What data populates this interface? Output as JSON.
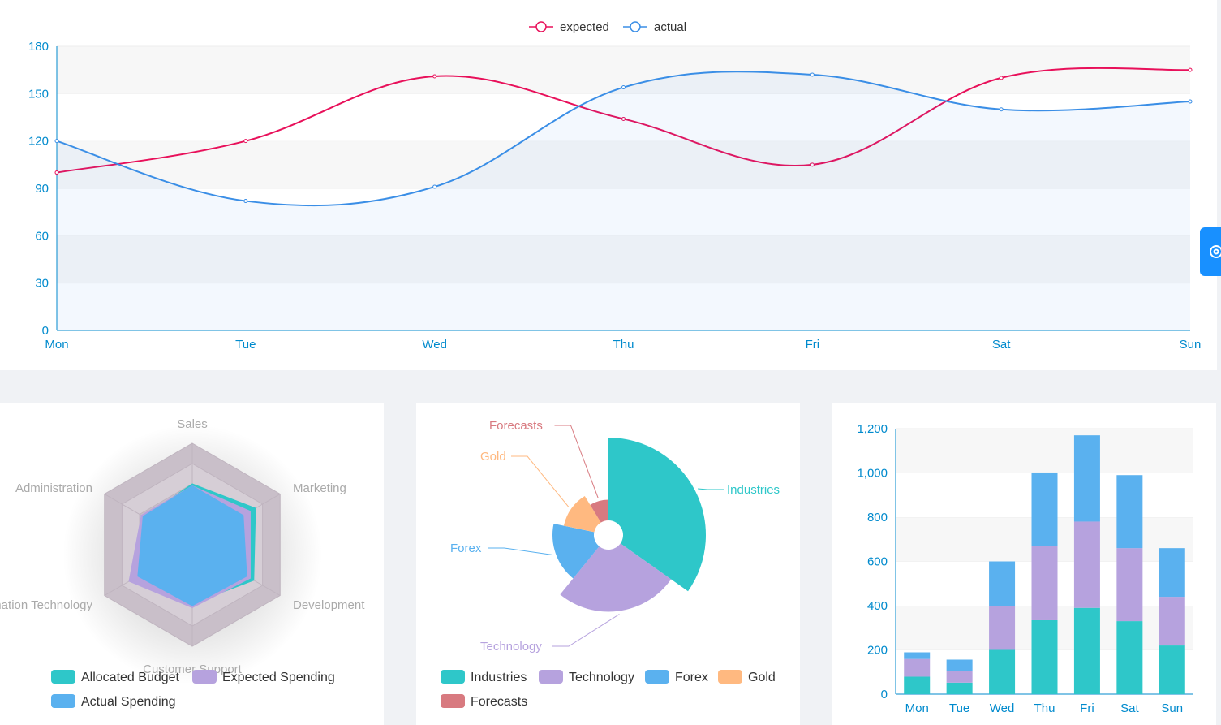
{
  "settings": {
    "icon": "gear-icon",
    "accent": "#1890ff"
  },
  "chart_data": [
    {
      "type": "line",
      "smooth": true,
      "categories": [
        "Mon",
        "Tue",
        "Wed",
        "Thu",
        "Fri",
        "Sat",
        "Sun"
      ],
      "ylim": [
        0,
        180
      ],
      "yticks": [
        0,
        30,
        60,
        90,
        120,
        150,
        180
      ],
      "legend_position": "top-center",
      "series": [
        {
          "name": "expected",
          "color": "#e8105a",
          "values": [
            100,
            120,
            161,
            134,
            105,
            160,
            165
          ]
        },
        {
          "name": "actual",
          "color": "#3a8ee6",
          "values": [
            120,
            82,
            91,
            154,
            162,
            140,
            145
          ],
          "area": true
        }
      ]
    },
    {
      "type": "radar",
      "indicators": [
        "Sales",
        "Marketing",
        "Development",
        "Customer Support",
        "Information Technology",
        "Administration"
      ],
      "series": [
        {
          "name": "Allocated Budget",
          "color": "#2ec7c9",
          "values": [
            0.6,
            0.72,
            0.7,
            0.58,
            0.62,
            0.55
          ]
        },
        {
          "name": "Expected Spending",
          "color": "#b6a2de",
          "values": [
            0.58,
            0.66,
            0.66,
            0.62,
            0.72,
            0.58
          ]
        },
        {
          "name": "Actual Spending",
          "color": "#5ab1ef",
          "values": [
            0.58,
            0.58,
            0.62,
            0.6,
            0.62,
            0.56
          ]
        }
      ],
      "legend_position": "bottom"
    },
    {
      "type": "pie",
      "rose": true,
      "slices": [
        {
          "name": "Industries",
          "value": 40,
          "color": "#2ec7c9"
        },
        {
          "name": "Technology",
          "value": 30,
          "color": "#b6a2de"
        },
        {
          "name": "Forex",
          "value": 20,
          "color": "#5ab1ef"
        },
        {
          "name": "Gold",
          "value": 15,
          "color": "#ffb980"
        },
        {
          "name": "Forecasts",
          "value": 10,
          "color": "#d87a80"
        }
      ],
      "legend_position": "bottom"
    },
    {
      "type": "bar",
      "stacked": true,
      "categories": [
        "Mon",
        "Tue",
        "Wed",
        "Thu",
        "Fri",
        "Sat",
        "Sun"
      ],
      "ylim": [
        0,
        1200
      ],
      "yticks": [
        "0",
        "200",
        "400",
        "600",
        "800",
        "1,000",
        "1,200"
      ],
      "series": [
        {
          "name": "",
          "color": "#2ec7c9",
          "values": [
            79,
            52,
            200,
            334,
            390,
            330,
            220
          ]
        },
        {
          "name": "",
          "color": "#b6a2de",
          "values": [
            80,
            52,
            200,
            334,
            390,
            330,
            220
          ]
        },
        {
          "name": "",
          "color": "#5ab1ef",
          "values": [
            30,
            52,
            200,
            334,
            390,
            330,
            220
          ]
        }
      ]
    }
  ]
}
